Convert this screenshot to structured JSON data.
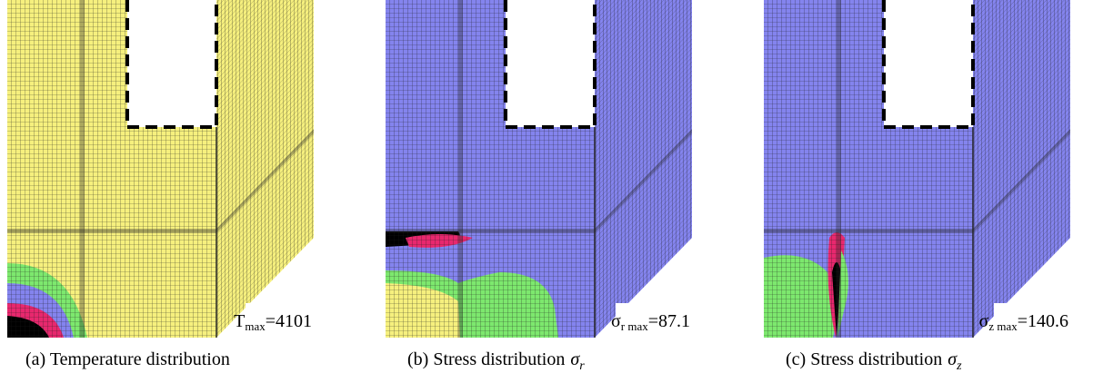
{
  "panels": [
    {
      "caption": {
        "text": "(a) Temperature distribution"
      },
      "max_label": {
        "symbol": "T",
        "subscript": "max",
        "value": "=4101"
      }
    },
    {
      "caption": {
        "text": "(b) Stress distribution",
        "symbol": "σ",
        "subscript": "r"
      },
      "max_label": {
        "symbol": "σ",
        "subscript": "r max",
        "value": "=87.1"
      }
    },
    {
      "caption": {
        "text": "(c) Stress distribution",
        "symbol": "σ",
        "subscript": "z"
      },
      "max_label": {
        "symbol": "σ",
        "subscript": "z max",
        "value": "=140.6"
      }
    }
  ]
}
